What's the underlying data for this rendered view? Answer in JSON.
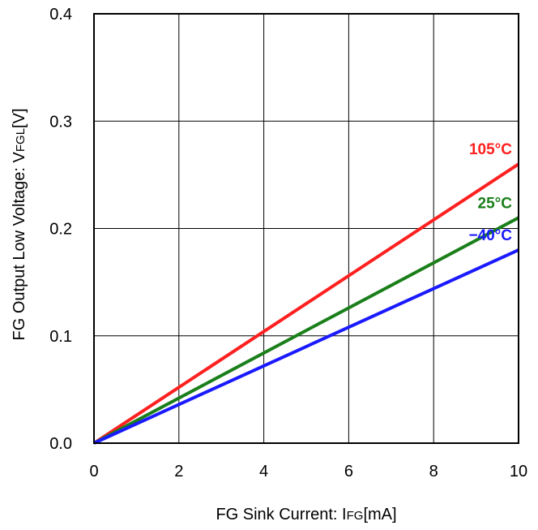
{
  "chart_data": {
    "type": "line",
    "xlabel": {
      "prefix": "FG Sink Current: I",
      "sub": "FG",
      "suffix": "[mA]"
    },
    "ylabel": {
      "prefix": "FG Output Low Voltage: V",
      "sub": "FGL",
      "suffix": "[V]"
    },
    "xlim": [
      0,
      10
    ],
    "ylim": [
      0,
      0.4
    ],
    "xticks": [
      0,
      2,
      4,
      6,
      8,
      10
    ],
    "xtick_labels": [
      "0",
      "2",
      "4",
      "6",
      "8",
      "10"
    ],
    "yticks": [
      0,
      0.1,
      0.2,
      0.3,
      0.4
    ],
    "ytick_labels": [
      "0.0",
      "0.1",
      "0.2",
      "0.3",
      "0.4"
    ],
    "grid": true,
    "series": [
      {
        "name": "105°C",
        "color": "#ff2020",
        "x": [
          0,
          10
        ],
        "y": [
          0,
          0.26
        ]
      },
      {
        "name": "25°C",
        "color": "#1a7f1a",
        "x": [
          0,
          10
        ],
        "y": [
          0,
          0.21
        ]
      },
      {
        "name": "−40°C",
        "color": "#1a1aff",
        "x": [
          0,
          10
        ],
        "y": [
          0,
          0.18
        ]
      }
    ]
  }
}
